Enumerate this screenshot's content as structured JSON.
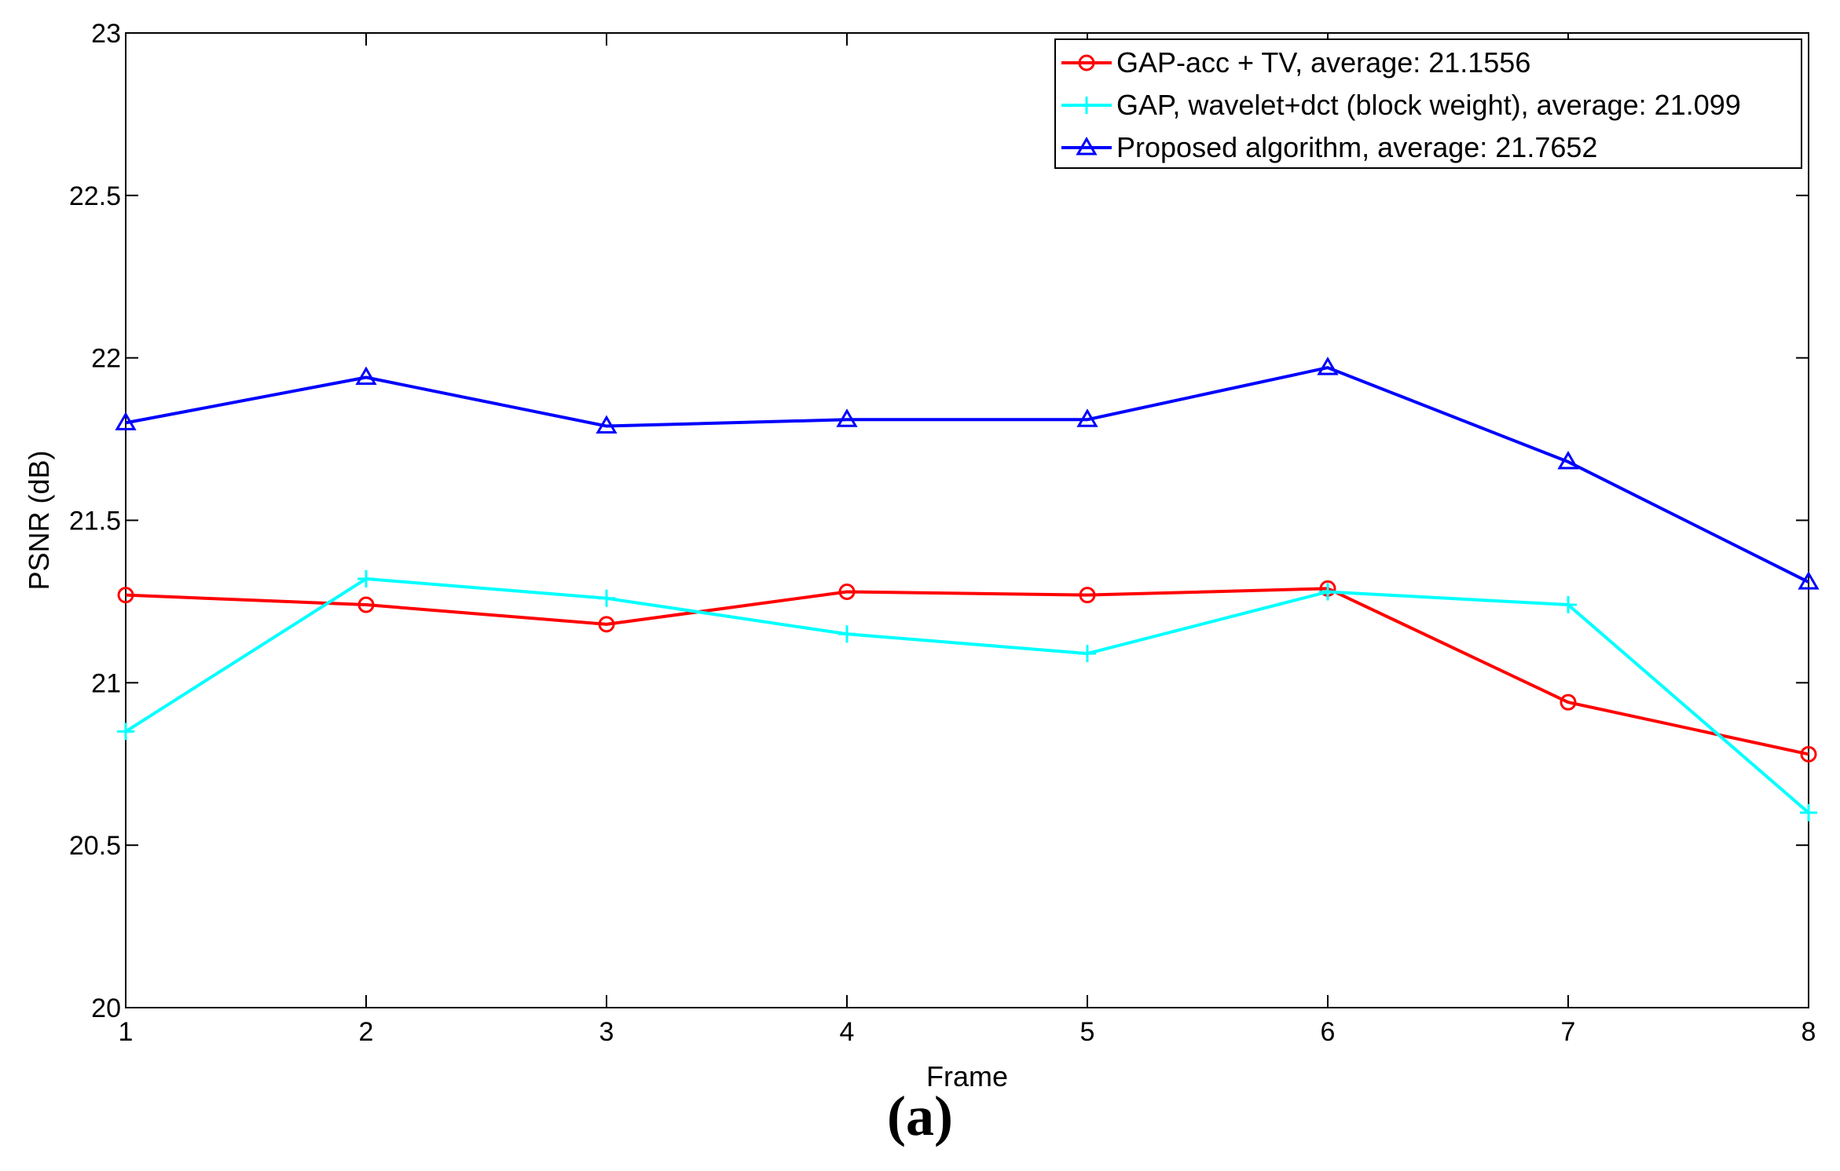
{
  "chart_data": {
    "type": "line",
    "title": "",
    "xlabel": "Frame",
    "ylabel": "PSNR (dB)",
    "x": [
      1,
      2,
      3,
      4,
      5,
      6,
      7,
      8
    ],
    "xlim": [
      1,
      8
    ],
    "ylim": [
      20,
      23
    ],
    "xticks": [
      "1",
      "2",
      "3",
      "4",
      "5",
      "6",
      "7",
      "8"
    ],
    "yticks": [
      "20",
      "20.5",
      "21",
      "21.5",
      "22",
      "22.5",
      "23"
    ],
    "grid": false,
    "legend_position": "top-right",
    "series": [
      {
        "name": "GAP-acc + TV, average: 21.1556",
        "color": "#ff0000",
        "marker": "circle",
        "values": [
          21.27,
          21.24,
          21.18,
          21.28,
          21.27,
          21.29,
          20.94,
          20.78
        ]
      },
      {
        "name": "GAP, wavelet+dct (block weight), average: 21.099",
        "color": "#00ffff",
        "marker": "plus",
        "values": [
          20.85,
          21.32,
          21.26,
          21.15,
          21.09,
          21.28,
          21.24,
          20.6
        ]
      },
      {
        "name": "Proposed algorithm, average: 21.7652",
        "color": "#0000ff",
        "marker": "triangle",
        "values": [
          21.8,
          21.94,
          21.79,
          21.81,
          21.81,
          21.97,
          21.68,
          21.31
        ]
      }
    ]
  },
  "caption": "(a)"
}
